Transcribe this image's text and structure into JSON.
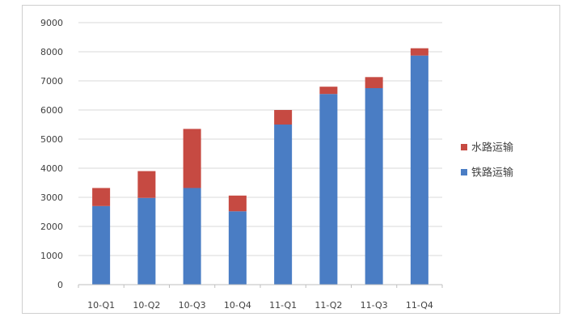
{
  "chart_data": {
    "type": "bar",
    "stacked": true,
    "categories": [
      "10-Q1",
      "10-Q2",
      "10-Q3",
      "10-Q4",
      "11-Q1",
      "11-Q2",
      "11-Q3",
      "11-Q4"
    ],
    "series": [
      {
        "name": "铁路运输",
        "color": "#4a7dc4",
        "values": [
          2700,
          2980,
          3320,
          2520,
          5500,
          6550,
          6750,
          7870
        ]
      },
      {
        "name": "水路运输",
        "color": "#c64a42",
        "values": [
          620,
          920,
          2030,
          540,
          500,
          250,
          380,
          250
        ]
      }
    ],
    "ylim": [
      0,
      9000
    ],
    "yticks": [
      0,
      1000,
      2000,
      3000,
      4000,
      5000,
      6000,
      7000,
      8000,
      9000
    ],
    "grid": true,
    "legend_position": "right",
    "legend_order": [
      "水路运输",
      "铁路运输"
    ]
  }
}
